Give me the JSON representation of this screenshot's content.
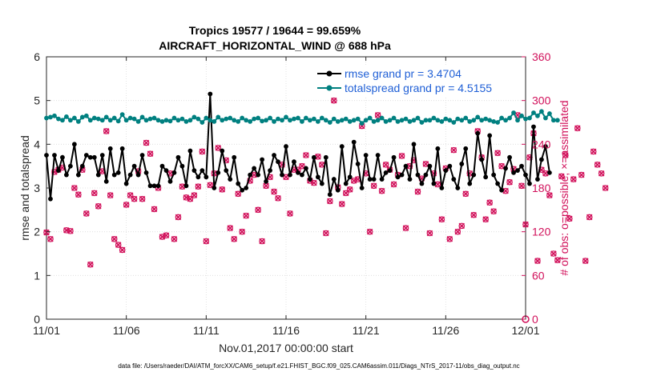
{
  "chart_data": {
    "type": "line",
    "title": "Tropics 19577 / 19644 = 99.659%",
    "subtitle": "AIRCRAFT_HORIZONTAL_WIND @ 688 hPa",
    "xlabel": "Nov.01,2017 00:00:00 start",
    "ylabel": "rmse and totalspread",
    "y2label": "# of obs: o=possible; ×=assimilated",
    "x_ticks": [
      "11/01",
      "11/06",
      "11/11",
      "11/16",
      "11/21",
      "11/26",
      "12/01"
    ],
    "xlim": [
      0,
      30
    ],
    "ylim": [
      0,
      6
    ],
    "y_ticks": [
      "0",
      "1",
      "2",
      "3",
      "4",
      "5",
      "6"
    ],
    "y2lim": [
      0,
      360
    ],
    "y2_ticks": [
      "0",
      "60",
      "120",
      "180",
      "240",
      "300",
      "360"
    ],
    "legend_location": "top-right",
    "colors": {
      "rmse": "#000000",
      "totalspread": "#008080",
      "obs": "#d1105a",
      "legend_text": "#1f5fd6"
    },
    "series": [
      {
        "name": "rmse grand pr = 3.4704",
        "axis": "left",
        "x_start": 0.0,
        "dx": 0.25,
        "values": [
          3.75,
          2.75,
          3.75,
          3.4,
          3.7,
          3.3,
          3.5,
          4.0,
          3.3,
          3.5,
          3.75,
          3.7,
          3.7,
          3.3,
          3.75,
          3.15,
          3.9,
          3.3,
          3.35,
          3.9,
          3.1,
          3.3,
          3.5,
          3.3,
          3.75,
          3.35,
          3.05,
          3.05,
          3.05,
          3.5,
          3.4,
          3.15,
          3.35,
          3.7,
          3.5,
          3.05,
          3.85,
          3.4,
          3.25,
          3.4,
          3.25,
          5.15,
          3.0,
          3.35,
          3.85,
          3.4,
          3.2,
          3.7,
          3.1,
          2.95,
          3.0,
          3.3,
          3.45,
          3.3,
          3.65,
          3.15,
          3.4,
          3.75,
          3.6,
          3.3,
          3.95,
          3.3,
          3.6,
          3.35,
          3.3,
          3.45,
          3.2,
          3.7,
          3.25,
          3.1,
          3.7,
          2.85,
          3.2,
          2.95,
          3.95,
          3.1,
          3.25,
          4.05,
          3.55,
          3.0,
          3.75,
          3.2,
          3.2,
          3.75,
          3.2,
          3.35,
          3.4,
          3.7,
          3.25,
          3.3,
          3.5,
          3.2,
          4.0,
          3.3,
          3.1,
          3.3,
          3.5,
          3.1,
          3.9,
          3.0,
          3.4,
          3.5,
          3.2,
          3.0,
          3.55,
          3.9,
          3.1,
          3.3,
          4.25,
          3.65,
          3.25,
          4.2,
          3.3,
          3.1,
          2.95,
          3.45,
          3.7,
          3.35,
          3.4,
          3.5,
          3.3,
          3.1,
          4.4,
          3.2,
          3.65,
          3.95,
          3.35
        ]
      },
      {
        "name": "totalspread grand pr = 4.5155",
        "axis": "left",
        "x_start": 0.0,
        "dx": 0.25,
        "values": [
          4.6,
          4.62,
          4.65,
          4.58,
          4.55,
          4.63,
          4.55,
          4.6,
          4.52,
          4.62,
          4.65,
          4.55,
          4.6,
          4.58,
          4.55,
          4.62,
          4.55,
          4.6,
          4.53,
          4.68,
          4.55,
          4.6,
          4.58,
          4.52,
          4.62,
          4.55,
          4.58,
          4.6,
          4.55,
          4.52,
          4.55,
          4.53,
          4.6,
          4.55,
          4.58,
          4.52,
          4.55,
          4.62,
          4.58,
          4.5,
          4.6,
          4.55,
          4.52,
          4.62,
          4.55,
          4.58,
          4.6,
          4.55,
          4.52,
          4.6,
          4.55,
          4.52,
          4.58,
          4.6,
          4.53,
          4.55,
          4.6,
          4.52,
          4.58,
          4.55,
          4.62,
          4.55,
          4.58,
          4.6,
          4.52,
          4.6,
          4.55,
          4.58,
          4.52,
          4.6,
          4.55,
          4.5,
          4.58,
          4.52,
          4.55,
          4.58,
          4.52,
          4.55,
          4.58,
          4.48,
          4.55,
          4.6,
          4.52,
          4.55,
          4.6,
          4.52,
          4.55,
          4.6,
          4.52,
          4.55,
          4.58,
          4.52,
          4.55,
          4.6,
          4.5,
          4.55,
          4.55,
          4.6,
          4.55,
          4.52,
          4.58,
          4.55,
          4.5,
          4.58,
          4.55,
          4.6,
          4.52,
          4.55,
          4.62,
          4.55,
          4.58,
          4.55,
          4.52,
          4.5,
          4.6,
          4.55,
          4.6,
          4.72,
          4.55,
          4.65,
          4.58,
          4.6,
          4.72,
          4.65,
          4.75,
          4.6,
          4.7,
          4.55,
          4.55
        ]
      },
      {
        "name": "# of obs (possible/assimilated)",
        "axis": "right",
        "x_start": 0.0,
        "dx": 0.25,
        "values": [
          119,
          110,
          202,
          205,
          208,
          122,
          121,
          180,
          171,
          205,
          145,
          75,
          173,
          155,
          203,
          258,
          170,
          110,
          102,
          95,
          157,
          170,
          165,
          203,
          165,
          242,
          227,
          151,
          180,
          113,
          115,
          200,
          110,
          140,
          182,
          167,
          165,
          170,
          182,
          230,
          107,
          184,
          200,
          235,
          178,
          218,
          125,
          110,
          172,
          120,
          142,
          190,
          198,
          150,
          107,
          183,
          195,
          175,
          166,
          212,
          195,
          145,
          205,
          205,
          210,
          225,
          190,
          187,
          223,
          212,
          118,
          162,
          300,
          181,
          158,
          173,
          178,
          190,
          192,
          265,
          200,
          120,
          183,
          280,
          176,
          212,
          205,
          185,
          198,
          224,
          125,
          210,
          218,
          175,
          193,
          213,
          118,
          200,
          185,
          137,
          207,
          110,
          232,
          120,
          128,
          172,
          200,
          143,
          258,
          222,
          137,
          160,
          148,
          228,
          210,
          176,
          188,
          206,
          280,
          183,
          130,
          222,
          255,
          80,
          205,
          200,
          170,
          90,
          81,
          196,
          225,
          138,
          192,
          262,
          198,
          80,
          140,
          230,
          212,
          200,
          180
        ]
      }
    ],
    "annotation": "data file: /Users/raeder/DAI/ATM_forcXX/CAM6_setup/f.e21.FHIST_BGC.f09_025.CAM6assim.011/Diags_NTrS_2017-11/obs_diag_output.nc"
  }
}
